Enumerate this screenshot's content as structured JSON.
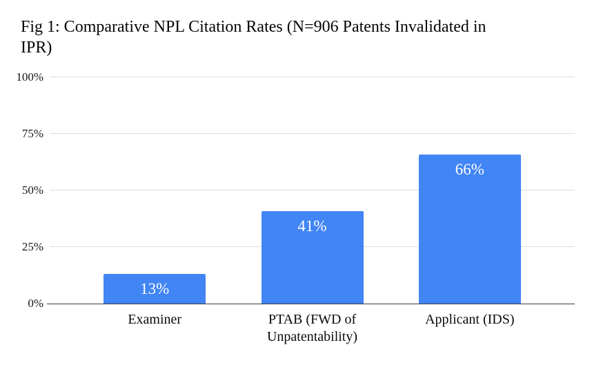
{
  "figure": {
    "title": "Fig 1: Comparative NPL Citation Rates (N=906 Patents Invalidated in IPR)",
    "title_lines": [
      "Fig 1: Comparative NPL Citation Rates (N=906 Patents Invalidated in",
      "IPR)"
    ]
  },
  "chart_data": {
    "type": "bar",
    "title": "Fig 1: Comparative NPL Citation Rates (N=906 Patents Invalidated in IPR)",
    "categories": [
      "Examiner",
      "PTAB (FWD of Unpatentability)",
      "Applicant (IDS)"
    ],
    "values": [
      13,
      41,
      66
    ],
    "value_labels": [
      "13%",
      "41%",
      "66%"
    ],
    "xlabel": "",
    "ylabel": "",
    "ylim": [
      0,
      100
    ],
    "yticks": [
      0,
      25,
      50,
      75,
      100
    ],
    "ytick_labels": [
      "0%",
      "25%",
      "50%",
      "75%",
      "100%"
    ],
    "grid": true,
    "legend_position": "none",
    "bar_color": "#4285f4",
    "value_label_color": "#ffffff",
    "gridline_color": "#dcdcdc",
    "axis_line_color": "#3c3c3c"
  }
}
